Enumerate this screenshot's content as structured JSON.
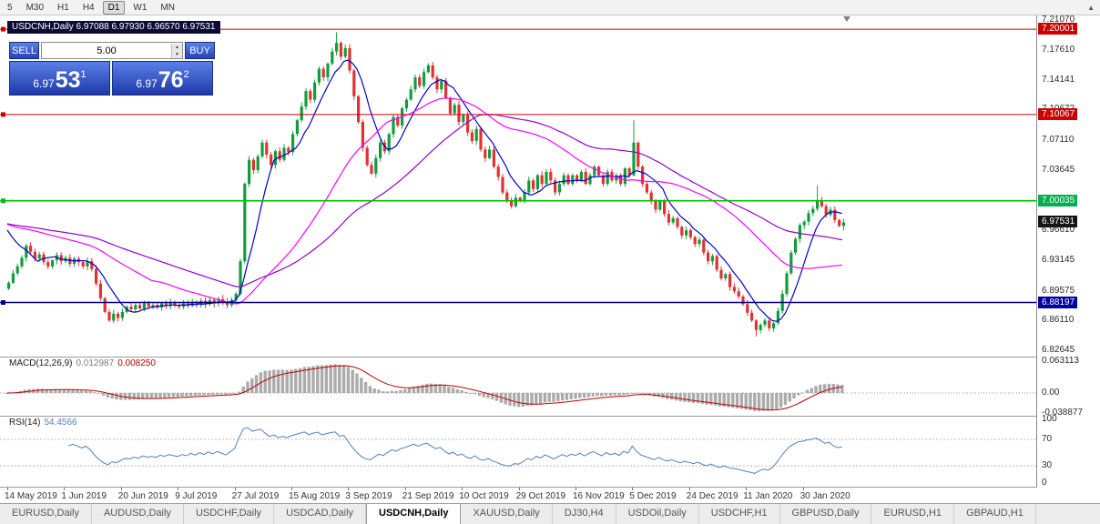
{
  "toolbar": {
    "timeframes": [
      "5",
      "M30",
      "H1",
      "H4",
      "D1",
      "W1",
      "MN"
    ],
    "active_timeframe": "D1"
  },
  "window": {
    "symbol_ohlc_label": "USDCNH,Daily 6.97088 6.97930 6.96570 6.97531"
  },
  "trade_panel": {
    "sell_label": "SELL",
    "buy_label": "BUY",
    "amount": "5.00",
    "sell_price": {
      "prefix": "6.97",
      "big": "53",
      "sup": "1"
    },
    "buy_price": {
      "prefix": "6.97",
      "big": "76",
      "sup": "2"
    }
  },
  "price_axis": {
    "labels": [
      "7.21070",
      "7.17610",
      "7.14141",
      "7.10672",
      "7.07110",
      "7.03645",
      "7.00176",
      "6.96610",
      "6.93145",
      "6.89575",
      "6.86110",
      "6.82645"
    ],
    "tags": [
      {
        "text": "7.20001",
        "price": 7.20001,
        "bg": "#cc0000"
      },
      {
        "text": "7.10067",
        "price": 7.10067,
        "bg": "#cc0000"
      },
      {
        "text": "7.00035",
        "price": 7.00035,
        "bg": "#00b050"
      },
      {
        "text": "6.97531",
        "price": 6.97531,
        "bg": "#151515"
      },
      {
        "text": "6.88197",
        "price": 6.88197,
        "bg": "#0000a0"
      }
    ]
  },
  "macd_panel": {
    "name": "MACD(12,26,9)",
    "value_main": "0.012987",
    "value_signal": "0.008250",
    "axis": [
      {
        "text": "0.063113",
        "value": 0.063113
      },
      {
        "text": "0.00",
        "value": 0
      },
      {
        "text": "-0.038877",
        "value": -0.038877
      }
    ]
  },
  "rsi_panel": {
    "name": "RSI(14)",
    "value": "54.4566",
    "axis": [
      {
        "text": "100",
        "value": 100
      },
      {
        "text": "70",
        "value": 70
      },
      {
        "text": "30",
        "value": 30
      },
      {
        "text": "0",
        "value": 0
      }
    ],
    "levels": [
      70,
      30
    ]
  },
  "date_axis": [
    "14 May 2019",
    "1 Jun 2019",
    "20 Jun 2019",
    "9 Jul 2019",
    "27 Jul 2019",
    "15 Aug 2019",
    "3 Sep 2019",
    "21 Sep 2019",
    "10 Oct 2019",
    "29 Oct 2019",
    "16 Nov 2019",
    "5 Dec 2019",
    "24 Dec 2019",
    "11 Jan 2020",
    "30 Jan 2020"
  ],
  "tabs": {
    "items": [
      "EURUSD,Daily",
      "AUDUSD,Daily",
      "USDCHF,Daily",
      "USDCAD,Daily",
      "USDCNH,Daily",
      "XAUUSD,Daily",
      "DJ30,H4",
      "USDOil,Daily",
      "USDCHF,H1",
      "GBPUSD,Daily",
      "EURUSD,H1",
      "GBPAUD,H1"
    ],
    "active_index": 4
  },
  "colors": {
    "bull": "#109e3c",
    "bear": "#e03232",
    "ma_fast": "#0000cd",
    "ma_mid": "#ff00ff",
    "ma_slow": "#9400d3",
    "hline_red": "#cc0000",
    "hline_green": "#00c000",
    "hline_blue": "#000080",
    "macd_hist": "#ababab",
    "macd_signal": "#c00000",
    "rsi_line": "#4f81bd"
  },
  "chart_data": {
    "type": "candlestick",
    "symbol": "USDCNH",
    "timeframe": "Daily",
    "current_bar": {
      "open": 6.97088,
      "high": 6.9793,
      "low": 6.9657,
      "close": 6.97531
    },
    "bid": 6.9753,
    "ask": 6.9776,
    "y_range": {
      "top": 7.216,
      "bottom": 6.819
    },
    "horizontal_lines": [
      {
        "price": 7.20001,
        "color": "red"
      },
      {
        "price": 7.10067,
        "color": "red"
      },
      {
        "price": 7.00035,
        "color": "green"
      },
      {
        "price": 6.88197,
        "color": "blue"
      }
    ],
    "first_open": 6.898,
    "closes": [
      6.905,
      6.916,
      6.924,
      6.934,
      6.948,
      6.941,
      6.933,
      6.938,
      6.929,
      6.924,
      6.931,
      6.937,
      6.93,
      6.934,
      6.927,
      6.933,
      6.929,
      6.924,
      6.93,
      6.921,
      6.904,
      6.887,
      6.871,
      6.861,
      6.869,
      6.864,
      6.871,
      6.877,
      6.874,
      6.879,
      6.875,
      6.881,
      6.877,
      6.879,
      6.876,
      6.881,
      6.878,
      6.882,
      6.879,
      6.877,
      6.881,
      6.878,
      6.883,
      6.879,
      6.884,
      6.88,
      6.885,
      6.881,
      6.886,
      6.883,
      6.879,
      6.885,
      6.892,
      6.93,
      7.02,
      7.048,
      7.036,
      7.052,
      7.068,
      7.054,
      7.042,
      7.058,
      7.048,
      7.062,
      7.057,
      7.078,
      7.094,
      7.11,
      7.128,
      7.118,
      7.138,
      7.154,
      7.144,
      7.16,
      7.174,
      7.184,
      7.168,
      7.178,
      7.152,
      7.122,
      7.092,
      7.062,
      7.042,
      7.032,
      7.05,
      7.068,
      7.058,
      7.078,
      7.098,
      7.088,
      7.108,
      7.118,
      7.13,
      7.144,
      7.134,
      7.15,
      7.158,
      7.144,
      7.13,
      7.14,
      7.12,
      7.102,
      7.112,
      7.092,
      7.1,
      7.08,
      7.07,
      7.084,
      7.06,
      7.05,
      7.06,
      7.04,
      7.028,
      7.01,
      7.0,
      6.994,
      7.004,
      7.0,
      7.01,
      7.024,
      7.014,
      7.03,
      7.02,
      7.034,
      7.024,
      7.01,
      7.02,
      7.03,
      7.02,
      7.03,
      7.024,
      7.034,
      7.02,
      7.03,
      7.04,
      7.03,
      7.02,
      7.034,
      7.024,
      7.03,
      7.02,
      7.038,
      7.03,
      7.068,
      7.04,
      7.02,
      7.01,
      7.0,
      6.99,
      7.0,
      6.985,
      6.975,
      6.98,
      6.97,
      6.96,
      6.966,
      6.958,
      6.95,
      6.955,
      6.94,
      6.93,
      6.936,
      6.92,
      6.91,
      6.915,
      6.9,
      6.895,
      6.889,
      6.88,
      6.87,
      6.861,
      6.85,
      6.856,
      6.861,
      6.852,
      6.858,
      6.872,
      6.892,
      6.916,
      6.94,
      6.956,
      6.972,
      6.976,
      6.986,
      6.991,
      7.001,
      6.994,
      6.984,
      6.99,
      6.978,
      6.971,
      6.9753
    ],
    "wick_overrides": {
      "75": {
        "high": 7.1965
      },
      "143": {
        "high": 7.094
      },
      "171": {
        "low": 6.8425
      },
      "185": {
        "high": 7.018
      },
      "191": {
        "high": 6.9793,
        "low": 6.9657
      }
    },
    "indicators": {
      "ma_periods": [
        8,
        34,
        55
      ],
      "macd": {
        "fast": 12,
        "slow": 26,
        "signal": 9,
        "current": 0.012987,
        "current_signal": 0.00825
      },
      "rsi": {
        "period": 14,
        "current": 54.4566
      }
    }
  }
}
